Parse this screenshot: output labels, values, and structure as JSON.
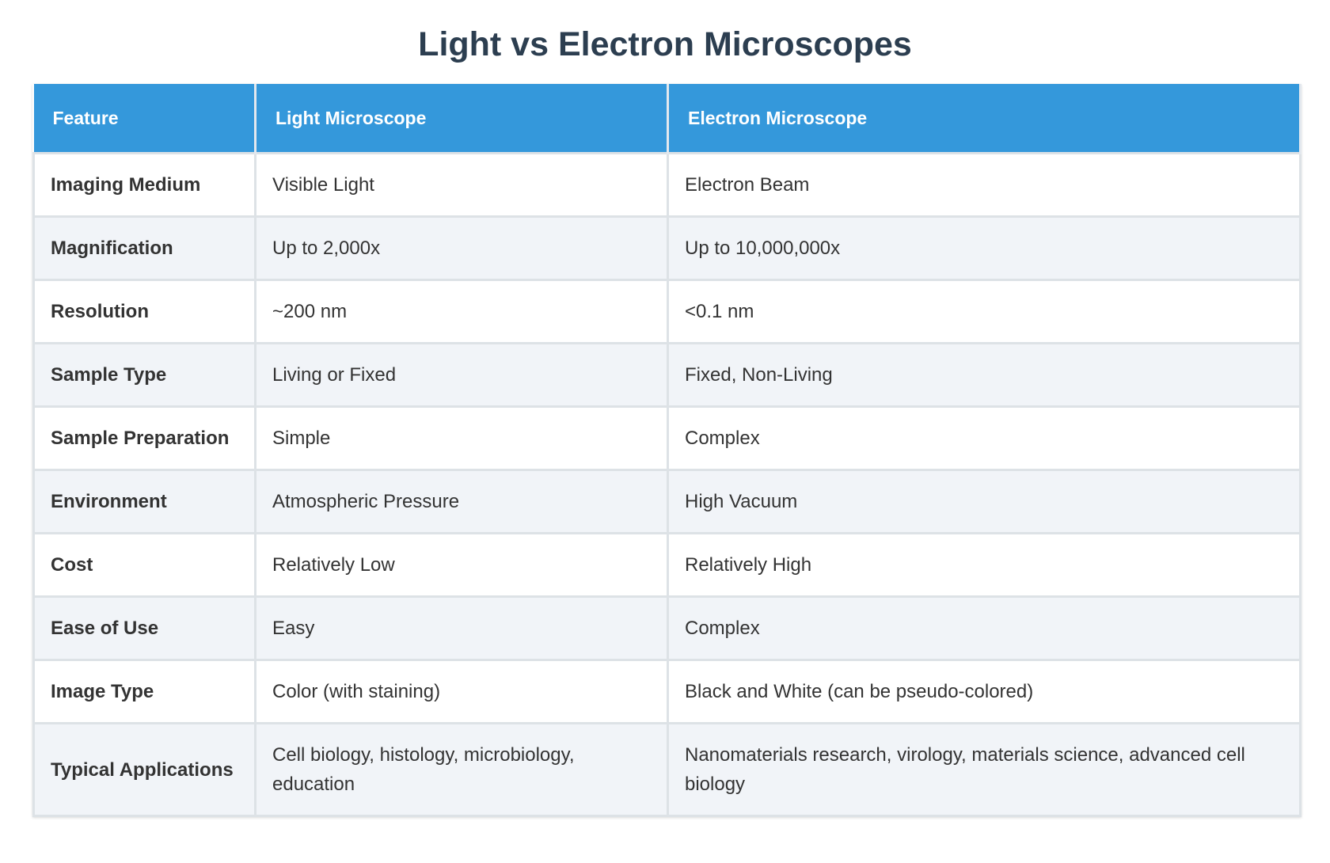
{
  "title": "Light vs Electron Microscopes",
  "table": {
    "headers": [
      "Feature",
      "Light Microscope",
      "Electron Microscope"
    ],
    "rows": [
      [
        "Imaging Medium",
        "Visible Light",
        "Electron Beam"
      ],
      [
        "Magnification",
        "Up to 2,000x",
        "Up to 10,000,000x"
      ],
      [
        "Resolution",
        "~200 nm",
        "<0.1 nm"
      ],
      [
        "Sample Type",
        "Living or Fixed",
        "Fixed, Non-Living"
      ],
      [
        "Sample Preparation",
        "Simple",
        "Complex"
      ],
      [
        "Environment",
        "Atmospheric Pressure",
        "High Vacuum"
      ],
      [
        "Cost",
        "Relatively Low",
        "Relatively High"
      ],
      [
        "Ease of Use",
        "Easy",
        "Complex"
      ],
      [
        "Image Type",
        "Color (with staining)",
        "Black and White (can be pseudo-colored)"
      ],
      [
        "Typical Applications",
        "Cell biology, histology, microbiology, education",
        "Nanomaterials research, virology, materials science, advanced cell biology"
      ]
    ]
  }
}
